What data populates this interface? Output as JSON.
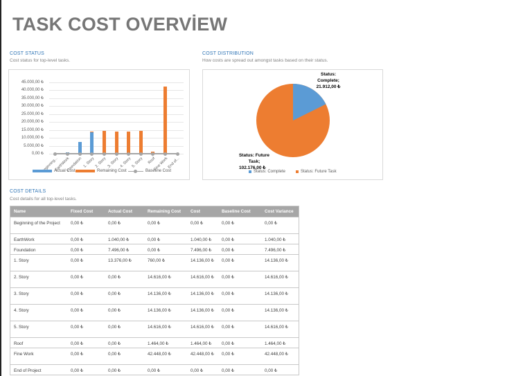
{
  "page": {
    "title": "TASK COST OVERVİEW"
  },
  "cost_status": {
    "heading": "COST STATUS",
    "subtitle": "Cost status for top-level tasks.",
    "y_ticks": [
      "45.000,00 ₺",
      "40.000,00 ₺",
      "35.000,00 ₺",
      "30.000,00 ₺",
      "25.000,00 ₺",
      "20.000,00 ₺",
      "15.000,00 ₺",
      "10.000,00 ₺",
      "5.000,00 ₺",
      "0,00 ₺"
    ],
    "x_labels": [
      "Beginning...",
      "EarthWork",
      "Foundation",
      "1. Story",
      "2. Story",
      "3. Story",
      "4. Story",
      "5. Story",
      "Roof",
      "Fine Work",
      "End of..."
    ],
    "legend": {
      "actual": "Actual Cost",
      "remaining": "Remaining Cost",
      "baseline": "Baseline Cost"
    }
  },
  "cost_distribution": {
    "heading": "COST DISTRIBUTION",
    "subtitle": "How costs are spread out amongst tasks based on their status.",
    "label_complete": [
      "Status:",
      "Complete;",
      "21.912,00 ₺"
    ],
    "label_future": [
      "Status: Future",
      "Task;",
      "102.176,00 ₺"
    ],
    "legend": {
      "complete": "Status: Complete",
      "future": "Status: Future Task"
    }
  },
  "cost_details": {
    "heading": "COST DETAILS",
    "subtitle": "Cost details for all top-level tasks.",
    "columns": [
      "Name",
      "Fixed Cost",
      "Actual Cost",
      "Remaining Cost",
      "Cost",
      "Baseline Cost",
      "Cost Variance"
    ],
    "rows": [
      [
        "Beginning of the Project",
        "0,00 ₺",
        "0,00 ₺",
        "0,00 ₺",
        "0,00 ₺",
        "0,00 ₺",
        "0,00 ₺"
      ],
      [
        "EarthWork",
        "0,00 ₺",
        "1.040,00 ₺",
        "0,00 ₺",
        "1.040,00 ₺",
        "0,00 ₺",
        "1.040,00 ₺"
      ],
      [
        "Foundation",
        "0,00 ₺",
        "7.496,00 ₺",
        "0,00 ₺",
        "7.496,00 ₺",
        "0,00 ₺",
        "7.496,00 ₺"
      ],
      [
        "1. Story",
        "0,00 ₺",
        "13.376,00 ₺",
        "760,00 ₺",
        "14.136,00 ₺",
        "0,00 ₺",
        "14.136,00 ₺"
      ],
      [
        "2. Story",
        "0,00 ₺",
        "0,00 ₺",
        "14.616,00 ₺",
        "14.616,00 ₺",
        "0,00 ₺",
        "14.616,00 ₺"
      ],
      [
        "3. Story",
        "0,00 ₺",
        "0,00 ₺",
        "14.136,00 ₺",
        "14.136,00 ₺",
        "0,00 ₺",
        "14.136,00 ₺"
      ],
      [
        "4. Story",
        "0,00 ₺",
        "0,00 ₺",
        "14.136,00 ₺",
        "14.136,00 ₺",
        "0,00 ₺",
        "14.136,00 ₺"
      ],
      [
        "5. Story",
        "0,00 ₺",
        "0,00 ₺",
        "14.616,00 ₺",
        "14.616,00 ₺",
        "0,00 ₺",
        "14.616,00 ₺"
      ],
      [
        "Roof",
        "0,00 ₺",
        "0,00 ₺",
        "1.464,00 ₺",
        "1.464,00 ₺",
        "0,00 ₺",
        "1.464,00 ₺"
      ],
      [
        "Fine Work",
        "0,00 ₺",
        "0,00 ₺",
        "42.448,00 ₺",
        "42.448,00 ₺",
        "0,00 ₺",
        "42.448,00 ₺"
      ],
      [
        "End of Project",
        "0,00 ₺",
        "0,00 ₺",
        "0,00 ₺",
        "0,00 ₺",
        "0,00 ₺",
        "0,00 ₺"
      ]
    ]
  },
  "colors": {
    "actual": "#5b9bd5",
    "remaining": "#ed7d31",
    "baseline": "#a5a5a5",
    "heading": "#2e74b5",
    "header_bg": "#a6a6a6"
  },
  "chart_data": [
    {
      "type": "bar",
      "title": "Cost Status",
      "stacked": true,
      "categories": [
        "Beginning of the Project",
        "EarthWork",
        "Foundation",
        "1. Story",
        "2. Story",
        "3. Story",
        "4. Story",
        "5. Story",
        "Roof",
        "Fine Work",
        "End of Project"
      ],
      "series": [
        {
          "name": "Actual Cost",
          "values": [
            0,
            1040,
            7496,
            13376,
            0,
            0,
            0,
            0,
            0,
            0,
            0
          ]
        },
        {
          "name": "Remaining Cost",
          "values": [
            0,
            0,
            0,
            760,
            14616,
            14136,
            14136,
            14616,
            1464,
            42448,
            0
          ]
        },
        {
          "name": "Baseline Cost",
          "type": "line",
          "values": [
            0,
            0,
            0,
            0,
            0,
            0,
            0,
            0,
            0,
            0,
            0
          ]
        }
      ],
      "ylim": [
        0,
        45000
      ],
      "grid": true,
      "legend_position": "bottom"
    },
    {
      "type": "pie",
      "title": "Cost Distribution",
      "categories": [
        "Status: Complete",
        "Status: Future Task"
      ],
      "values": [
        21912,
        102176
      ],
      "legend_position": "bottom"
    }
  ]
}
